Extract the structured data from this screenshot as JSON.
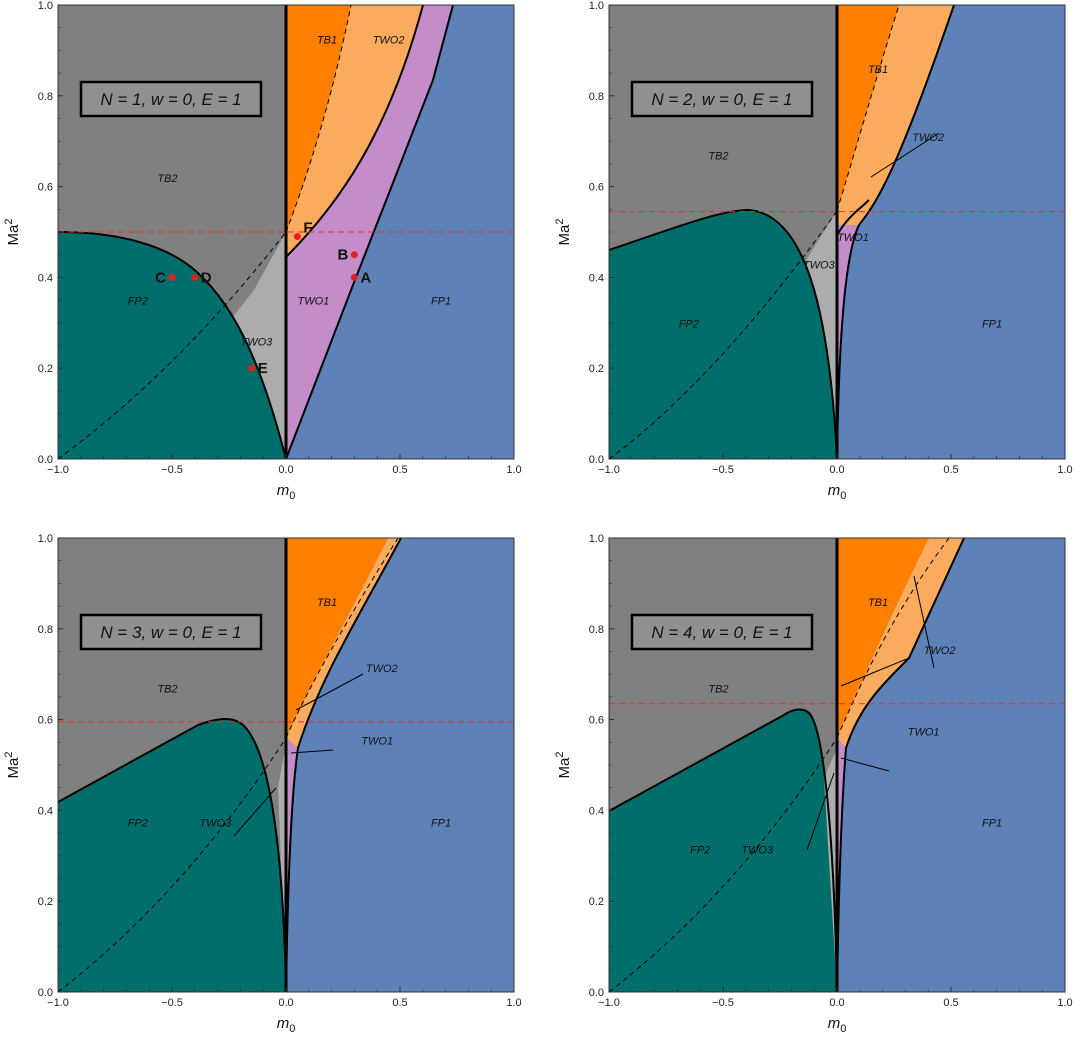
{
  "chart_data": [
    {
      "type": "area",
      "xlabel": "m0",
      "ylabel": "Ma2",
      "xlim": [
        -1,
        1
      ],
      "ylim": [
        0,
        1
      ],
      "xticks": [
        "−1.0",
        "−0.5",
        "0.0",
        "0.5",
        "1.0"
      ],
      "yticks": [
        "0.0",
        "0.2",
        "0.4",
        "0.6",
        "0.8",
        "1.0"
      ],
      "legend_box": "N = 1,  w = 0,  E = 1",
      "critical_Ma2": 0.5,
      "regions": [
        {
          "name": "TB2",
          "x": -0.52,
          "y": 0.61
        },
        {
          "name": "TB1",
          "x": 0.18,
          "y": 0.915
        },
        {
          "name": "TWO2",
          "x": 0.45,
          "y": 0.915
        },
        {
          "name": "TWO1",
          "x": 0.12,
          "y": 0.34
        },
        {
          "name": "TWO3",
          "x": -0.13,
          "y": 0.25
        },
        {
          "name": "FP2",
          "x": -0.65,
          "y": 0.34
        },
        {
          "name": "FP1",
          "x": 0.68,
          "y": 0.34
        }
      ],
      "points": [
        {
          "label": "A",
          "x": 0.3,
          "y": 0.4
        },
        {
          "label": "B",
          "x": 0.3,
          "y": 0.45
        },
        {
          "label": "C",
          "x": -0.5,
          "y": 0.4
        },
        {
          "label": "D",
          "x": -0.4,
          "y": 0.4
        },
        {
          "label": "E",
          "x": -0.15,
          "y": 0.2
        },
        {
          "label": "F",
          "x": 0.05,
          "y": 0.49
        }
      ]
    },
    {
      "type": "area",
      "xlabel": "m0",
      "ylabel": "Ma2",
      "xlim": [
        -1,
        1
      ],
      "ylim": [
        0,
        1
      ],
      "xticks": [
        "−1.0",
        "−0.5",
        "0.0",
        "0.5",
        "1.0"
      ],
      "yticks": [
        "0.0",
        "0.2",
        "0.4",
        "0.6",
        "0.8",
        "1.0"
      ],
      "legend_box": "N = 2,  w = 0,  E = 1",
      "critical_Ma2": 0.545,
      "regions": [
        {
          "name": "TB2",
          "x": -0.52,
          "y": 0.66
        },
        {
          "name": "TB1",
          "x": 0.18,
          "y": 0.85
        },
        {
          "name": "TWO2",
          "x": 0.4,
          "y": 0.7
        },
        {
          "name": "TWO1",
          "x": 0.07,
          "y": 0.48
        },
        {
          "name": "TWO3",
          "x": -0.08,
          "y": 0.42
        },
        {
          "name": "FP2",
          "x": -0.65,
          "y": 0.29
        },
        {
          "name": "FP1",
          "x": 0.68,
          "y": 0.29
        }
      ],
      "points": []
    },
    {
      "type": "area",
      "xlabel": "m0",
      "ylabel": "Ma2",
      "xlim": [
        -1,
        1
      ],
      "ylim": [
        0,
        1
      ],
      "xticks": [
        "−1.0",
        "−0.5",
        "0.0",
        "0.5",
        "1.0"
      ],
      "yticks": [
        "0.0",
        "0.2",
        "0.4",
        "0.6",
        "0.8",
        "1.0"
      ],
      "legend_box": "N = 3,  w = 0,  E = 1",
      "critical_Ma2": 0.595,
      "regions": [
        {
          "name": "TB2",
          "x": -0.52,
          "y": 0.66
        },
        {
          "name": "TB1",
          "x": 0.18,
          "y": 0.85
        },
        {
          "name": "TWO2",
          "x": 0.42,
          "y": 0.705
        },
        {
          "name": "TWO1",
          "x": 0.4,
          "y": 0.545
        },
        {
          "name": "TWO3",
          "x": -0.31,
          "y": 0.365
        },
        {
          "name": "FP2",
          "x": -0.65,
          "y": 0.365
        },
        {
          "name": "FP1",
          "x": 0.68,
          "y": 0.365
        }
      ],
      "points": []
    },
    {
      "type": "area",
      "xlabel": "m0",
      "ylabel": "Ma2",
      "xlim": [
        -1,
        1
      ],
      "ylim": [
        0,
        1
      ],
      "xticks": [
        "−1.0",
        "−0.5",
        "0.0",
        "0.5",
        "1.0"
      ],
      "yticks": [
        "0.0",
        "0.2",
        "0.4",
        "0.6",
        "0.8",
        "1.0"
      ],
      "legend_box": "N = 4,  w = 0,  E = 1",
      "critical_Ma2": 0.635,
      "regions": [
        {
          "name": "TB2",
          "x": -0.52,
          "y": 0.66
        },
        {
          "name": "TB1",
          "x": 0.18,
          "y": 0.85
        },
        {
          "name": "TWO2",
          "x": 0.45,
          "y": 0.745
        },
        {
          "name": "TWO1",
          "x": 0.38,
          "y": 0.565
        },
        {
          "name": "TWO3",
          "x": -0.35,
          "y": 0.305
        },
        {
          "name": "FP2",
          "x": -0.6,
          "y": 0.305
        },
        {
          "name": "FP1",
          "x": 0.68,
          "y": 0.365
        }
      ],
      "points": []
    }
  ]
}
